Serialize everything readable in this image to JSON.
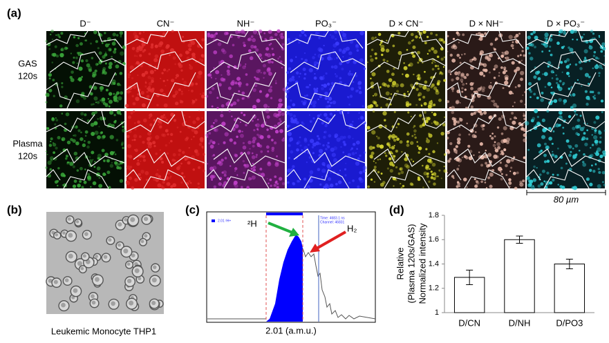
{
  "panel_a": {
    "label": "(a)",
    "columns": [
      "D⁻",
      "CN⁻",
      "NH⁻",
      "PO₃⁻",
      "D × CN⁻",
      "D × NH⁻",
      "D × PO₃⁻"
    ],
    "rows": [
      [
        "GAS",
        "120s"
      ],
      [
        "Plasma",
        "120s"
      ]
    ],
    "scale_bar": "80 µm"
  },
  "panel_b": {
    "label": "(b)",
    "caption": "Leukemic Monocyte THP1"
  },
  "panel_c": {
    "label": "(c)",
    "legend": "2.01 ²H+",
    "info": [
      "Time: 4683.1 ns",
      "Channel: 46831"
    ],
    "annotations": [
      "²H",
      "H₂"
    ],
    "xlabel": "2.01 (a.m.u.)"
  },
  "chart_data": {
    "type": "bar",
    "label": "(d)",
    "ylabel": [
      "Relative",
      "(Plasma 120s/GAS)",
      "Normalized intensity"
    ],
    "categories": [
      "D/CN",
      "D/NH",
      "D/PO3"
    ],
    "values": [
      1.29,
      1.6,
      1.4
    ],
    "errors": [
      0.06,
      0.03,
      0.04
    ],
    "color": "#ffffff",
    "ylim": [
      1,
      1.8
    ],
    "yticks": [
      1,
      1.2,
      1.4,
      1.6,
      1.8
    ]
  }
}
